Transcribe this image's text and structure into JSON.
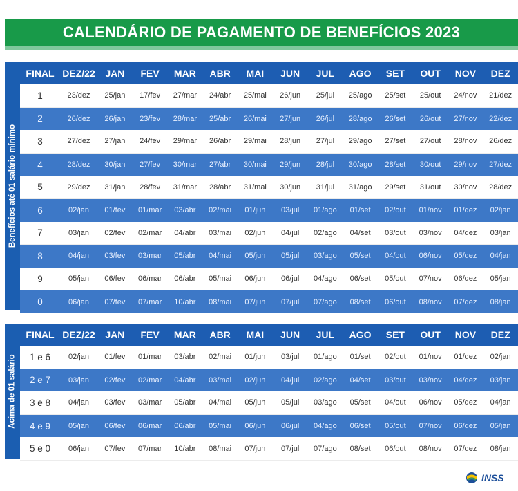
{
  "title": "CALENDÁRIO DE PAGAMENTO DE BENEFÍCIOS 2023",
  "headers": [
    "FINAL",
    "DEZ/22",
    "JAN",
    "FEV",
    "MAR",
    "ABR",
    "MAI",
    "JUN",
    "JUL",
    "AGO",
    "SET",
    "OUT",
    "NOV",
    "DEZ"
  ],
  "section1": {
    "label": "Benefícios até 01 salário mínimo",
    "rows": [
      [
        "1",
        "23/dez",
        "25/jan",
        "17/fev",
        "27/mar",
        "24/abr",
        "25/mai",
        "26/jun",
        "25/jul",
        "25/ago",
        "25/set",
        "25/out",
        "24/nov",
        "21/dez"
      ],
      [
        "2",
        "26/dez",
        "26/jan",
        "23/fev",
        "28/mar",
        "25/abr",
        "26/mai",
        "27/jun",
        "26/jul",
        "28/ago",
        "26/set",
        "26/out",
        "27/nov",
        "22/dez"
      ],
      [
        "3",
        "27/dez",
        "27/jan",
        "24/fev",
        "29/mar",
        "26/abr",
        "29/mai",
        "28/jun",
        "27/jul",
        "29/ago",
        "27/set",
        "27/out",
        "28/nov",
        "26/dez"
      ],
      [
        "4",
        "28/dez",
        "30/jan",
        "27/fev",
        "30/mar",
        "27/abr",
        "30/mai",
        "29/jun",
        "28/jul",
        "30/ago",
        "28/set",
        "30/out",
        "29/nov",
        "27/dez"
      ],
      [
        "5",
        "29/dez",
        "31/jan",
        "28/fev",
        "31/mar",
        "28/abr",
        "31/mai",
        "30/jun",
        "31/jul",
        "31/ago",
        "29/set",
        "31/out",
        "30/nov",
        "28/dez"
      ],
      [
        "6",
        "02/jan",
        "01/fev",
        "01/mar",
        "03/abr",
        "02/mai",
        "01/jun",
        "03/jul",
        "01/ago",
        "01/set",
        "02/out",
        "01/nov",
        "01/dez",
        "02/jan"
      ],
      [
        "7",
        "03/jan",
        "02/fev",
        "02/mar",
        "04/abr",
        "03/mai",
        "02/jun",
        "04/jul",
        "02/ago",
        "04/set",
        "03/out",
        "03/nov",
        "04/dez",
        "03/jan"
      ],
      [
        "8",
        "04/jan",
        "03/fev",
        "03/mar",
        "05/abr",
        "04/mai",
        "05/jun",
        "05/jul",
        "03/ago",
        "05/set",
        "04/out",
        "06/nov",
        "05/dez",
        "04/jan"
      ],
      [
        "9",
        "05/jan",
        "06/fev",
        "06/mar",
        "06/abr",
        "05/mai",
        "06/jun",
        "06/jul",
        "04/ago",
        "06/set",
        "05/out",
        "07/nov",
        "06/dez",
        "05/jan"
      ],
      [
        "0",
        "06/jan",
        "07/fev",
        "07/mar",
        "10/abr",
        "08/mai",
        "07/jun",
        "07/jul",
        "07/ago",
        "08/set",
        "06/out",
        "08/nov",
        "07/dez",
        "08/jan"
      ]
    ]
  },
  "section2": {
    "label": "Acima de 01 salário",
    "rows": [
      [
        "1 e 6",
        "02/jan",
        "01/fev",
        "01/mar",
        "03/abr",
        "02/mai",
        "01/jun",
        "03/jul",
        "01/ago",
        "01/set",
        "02/out",
        "01/nov",
        "01/dez",
        "02/jan"
      ],
      [
        "2 e 7",
        "03/jan",
        "02/fev",
        "02/mar",
        "04/abr",
        "03/mai",
        "02/jun",
        "04/jul",
        "02/ago",
        "04/set",
        "03/out",
        "03/nov",
        "04/dez",
        "03/jan"
      ],
      [
        "3 e 8",
        "04/jan",
        "03/fev",
        "03/mar",
        "05/abr",
        "04/mai",
        "05/jun",
        "05/jul",
        "03/ago",
        "05/set",
        "04/out",
        "06/nov",
        "05/dez",
        "04/jan"
      ],
      [
        "4 e 9",
        "05/jan",
        "06/fev",
        "06/mar",
        "06/abr",
        "05/mai",
        "06/jun",
        "06/jul",
        "04/ago",
        "06/set",
        "05/out",
        "07/nov",
        "06/dez",
        "05/jan"
      ],
      [
        "5 e 0",
        "06/jan",
        "07/fev",
        "07/mar",
        "10/abr",
        "08/mai",
        "07/jun",
        "07/jul",
        "07/ago",
        "08/set",
        "06/out",
        "08/nov",
        "07/dez",
        "08/jan"
      ]
    ]
  },
  "logo": {
    "text": "INSS",
    "icon": "inss-logo-icon"
  },
  "colors": {
    "title_bg": "#189a49",
    "header_bg": "#1d5db2",
    "stripe_bg": "#3d78c7"
  }
}
